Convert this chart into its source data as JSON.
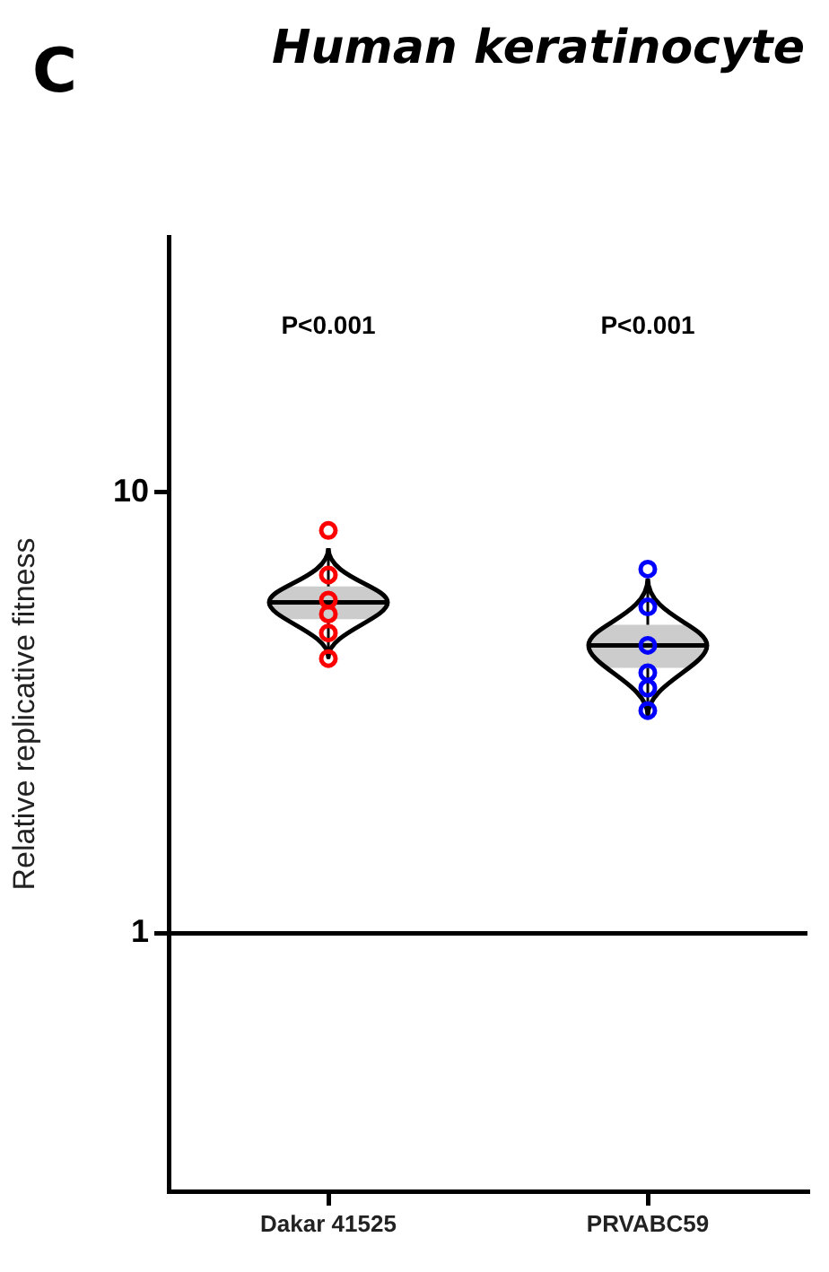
{
  "chart_data": {
    "type": "box",
    "title": "Human keratinocyte",
    "ylabel": "Relative replicative fitness",
    "categories": [
      "Dakar 41525",
      "PRVABC59"
    ],
    "boxes": [
      {
        "low": 4.23,
        "q1": 5.16,
        "median": 5.63,
        "q3": 6.12,
        "high": 7.48
      },
      {
        "low": 3.12,
        "q1": 4.0,
        "median": 4.5,
        "q3": 5.01,
        "high": 6.38
      }
    ],
    "series": [
      {
        "type": "scatter",
        "color": "#ff0000",
        "x": [
          "Dakar 41525",
          "Dakar 41525",
          "Dakar 41525",
          "Dakar 41525",
          "Dakar 41525",
          "Dakar 41525"
        ],
        "values": [
          8.2,
          6.5,
          5.7,
          5.3,
          4.8,
          4.2
        ]
      },
      {
        "type": "scatter",
        "color": "#0000ff",
        "x": [
          "PRVABC59",
          "PRVABC59",
          "PRVABC59",
          "PRVABC59",
          "PRVABC59",
          "PRVABC59"
        ],
        "values": [
          6.7,
          5.5,
          4.5,
          3.9,
          3.6,
          3.2
        ]
      }
    ],
    "log": true,
    "ylim": [
      0.26,
      38
    ],
    "yticks": [
      1,
      10
    ],
    "marker": "circle",
    "ref_lines": [
      {
        "axis": "y",
        "value": 1,
        "color": "#000000"
      }
    ],
    "annotations": [
      "C",
      "P<0.001",
      "P<0.001"
    ]
  }
}
